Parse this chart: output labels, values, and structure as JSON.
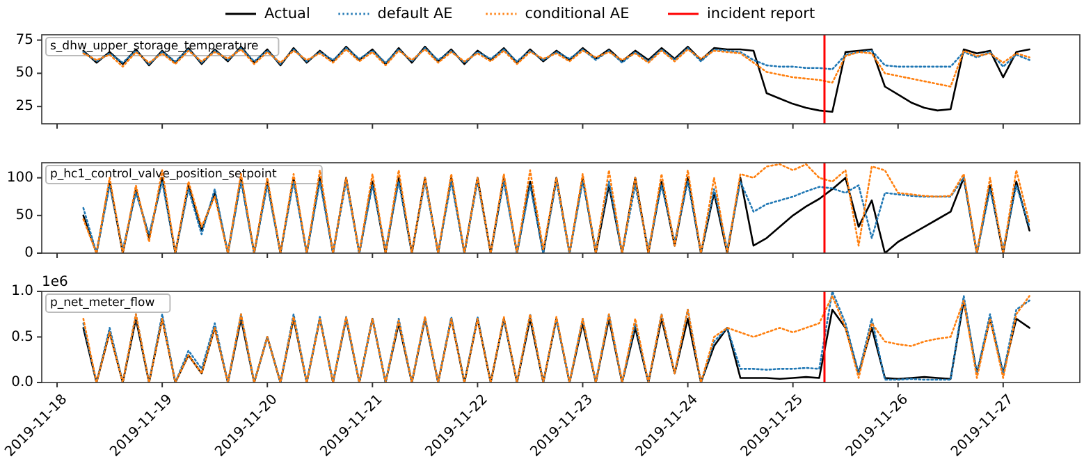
{
  "chart_data": [
    {
      "type": "line",
      "title": "s_dhw_upper_storage_temperature",
      "legend": "top",
      "tick_labels": "y",
      "x": [
        "2019-11-18T06:00",
        "2019-11-18T09:00",
        "2019-11-18T12:00",
        "2019-11-18T15:00",
        "2019-11-18T18:00",
        "2019-11-18T21:00",
        "2019-11-19T00:00",
        "2019-11-19T03:00",
        "2019-11-19T06:00",
        "2019-11-19T09:00",
        "2019-11-19T12:00",
        "2019-11-19T15:00",
        "2019-11-19T18:00",
        "2019-11-19T21:00",
        "2019-11-20T00:00",
        "2019-11-20T03:00",
        "2019-11-20T06:00",
        "2019-11-20T09:00",
        "2019-11-20T12:00",
        "2019-11-20T15:00",
        "2019-11-20T18:00",
        "2019-11-20T21:00",
        "2019-11-21T00:00",
        "2019-11-21T03:00",
        "2019-11-21T06:00",
        "2019-11-21T09:00",
        "2019-11-21T12:00",
        "2019-11-21T15:00",
        "2019-11-21T18:00",
        "2019-11-21T21:00",
        "2019-11-22T00:00",
        "2019-11-22T03:00",
        "2019-11-22T06:00",
        "2019-11-22T09:00",
        "2019-11-22T12:00",
        "2019-11-22T15:00",
        "2019-11-22T18:00",
        "2019-11-22T21:00",
        "2019-11-23T00:00",
        "2019-11-23T03:00",
        "2019-11-23T06:00",
        "2019-11-23T09:00",
        "2019-11-23T12:00",
        "2019-11-23T15:00",
        "2019-11-23T18:00",
        "2019-11-23T21:00",
        "2019-11-24T00:00",
        "2019-11-24T03:00",
        "2019-11-24T06:00",
        "2019-11-24T09:00",
        "2019-11-24T12:00",
        "2019-11-24T15:00",
        "2019-11-24T18:00",
        "2019-11-24T21:00",
        "2019-11-25T00:00",
        "2019-11-25T03:00",
        "2019-11-25T06:00",
        "2019-11-25T09:00",
        "2019-11-25T12:00",
        "2019-11-25T15:00",
        "2019-11-25T18:00",
        "2019-11-25T21:00",
        "2019-11-26T00:00",
        "2019-11-26T03:00",
        "2019-11-26T06:00",
        "2019-11-26T09:00",
        "2019-11-26T12:00",
        "2019-11-26T15:00",
        "2019-11-26T18:00",
        "2019-11-26T21:00",
        "2019-11-27T00:00",
        "2019-11-27T03:00",
        "2019-11-27T06:00"
      ],
      "xlim": [
        "2019-11-17T20:30",
        "2019-11-27T17:30"
      ],
      "xticks": [
        "2019-11-18",
        "2019-11-19",
        "2019-11-20",
        "2019-11-21",
        "2019-11-22",
        "2019-11-23",
        "2019-11-24",
        "2019-11-25",
        "2019-11-26",
        "2019-11-27"
      ],
      "ylim": [
        12,
        79
      ],
      "yticks": [
        25,
        50,
        75
      ],
      "ref_lines": [
        {
          "axis": "x",
          "value": "2019-11-25T07:12",
          "label": "incident report",
          "color": "#ff0000"
        }
      ],
      "series": [
        {
          "name": "Actual",
          "color": "#000000",
          "line_style": "solid",
          "values": [
            67,
            58,
            66,
            57,
            68,
            56,
            67,
            58,
            69,
            57,
            68,
            59,
            70,
            58,
            68,
            56,
            69,
            58,
            67,
            59,
            70,
            60,
            68,
            57,
            69,
            58,
            70,
            59,
            68,
            57,
            67,
            60,
            69,
            58,
            68,
            59,
            67,
            60,
            69,
            61,
            68,
            59,
            67,
            60,
            69,
            61,
            70,
            60,
            69,
            68,
            68,
            67,
            35,
            31,
            27,
            24,
            22,
            21,
            66,
            67,
            68,
            40,
            34,
            28,
            24,
            22,
            23,
            68,
            65,
            67,
            47,
            66,
            68
          ]
        },
        {
          "name": "default AE",
          "color": "#1f77b4",
          "line_style": "dotted",
          "values": [
            66,
            59,
            65,
            58,
            67,
            57,
            66,
            59,
            68,
            58,
            67,
            60,
            69,
            59,
            67,
            57,
            68,
            59,
            66,
            60,
            69,
            61,
            67,
            58,
            68,
            59,
            69,
            60,
            67,
            58,
            66,
            61,
            68,
            59,
            67,
            60,
            66,
            61,
            68,
            60,
            67,
            58,
            66,
            59,
            68,
            60,
            69,
            59,
            68,
            67,
            66,
            60,
            56,
            55,
            55,
            54,
            54,
            53,
            64,
            66,
            67,
            56,
            55,
            55,
            55,
            55,
            55,
            66,
            62,
            66,
            55,
            64,
            60
          ]
        },
        {
          "name": "conditional AE",
          "color": "#ff7f0e",
          "line_style": "dotted",
          "values": [
            65,
            60,
            64,
            55,
            66,
            58,
            65,
            57,
            67,
            59,
            66,
            61,
            68,
            57,
            66,
            58,
            67,
            60,
            65,
            58,
            68,
            59,
            66,
            56,
            67,
            60,
            68,
            58,
            66,
            59,
            65,
            59,
            67,
            57,
            66,
            61,
            65,
            59,
            67,
            62,
            66,
            60,
            65,
            58,
            67,
            59,
            68,
            61,
            67,
            66,
            65,
            58,
            51,
            49,
            47,
            46,
            45,
            43,
            63,
            66,
            65,
            50,
            48,
            46,
            44,
            42,
            40,
            67,
            63,
            65,
            58,
            65,
            62
          ]
        }
      ]
    },
    {
      "type": "line",
      "title": "p_hc1_control_valve_position_setpoint",
      "tick_labels": "y",
      "x": [
        "2019-11-18T06:00",
        "2019-11-18T09:00",
        "2019-11-18T12:00",
        "2019-11-18T15:00",
        "2019-11-18T18:00",
        "2019-11-18T21:00",
        "2019-11-19T00:00",
        "2019-11-19T03:00",
        "2019-11-19T06:00",
        "2019-11-19T09:00",
        "2019-11-19T12:00",
        "2019-11-19T15:00",
        "2019-11-19T18:00",
        "2019-11-19T21:00",
        "2019-11-20T00:00",
        "2019-11-20T03:00",
        "2019-11-20T06:00",
        "2019-11-20T09:00",
        "2019-11-20T12:00",
        "2019-11-20T15:00",
        "2019-11-20T18:00",
        "2019-11-20T21:00",
        "2019-11-21T00:00",
        "2019-11-21T03:00",
        "2019-11-21T06:00",
        "2019-11-21T09:00",
        "2019-11-21T12:00",
        "2019-11-21T15:00",
        "2019-11-21T18:00",
        "2019-11-21T21:00",
        "2019-11-22T00:00",
        "2019-11-22T03:00",
        "2019-11-22T06:00",
        "2019-11-22T09:00",
        "2019-11-22T12:00",
        "2019-11-22T15:00",
        "2019-11-22T18:00",
        "2019-11-22T21:00",
        "2019-11-23T00:00",
        "2019-11-23T03:00",
        "2019-11-23T06:00",
        "2019-11-23T09:00",
        "2019-11-23T12:00",
        "2019-11-23T15:00",
        "2019-11-23T18:00",
        "2019-11-23T21:00",
        "2019-11-24T00:00",
        "2019-11-24T03:00",
        "2019-11-24T06:00",
        "2019-11-24T09:00",
        "2019-11-24T12:00",
        "2019-11-24T15:00",
        "2019-11-24T18:00",
        "2019-11-24T21:00",
        "2019-11-25T00:00",
        "2019-11-25T03:00",
        "2019-11-25T06:00",
        "2019-11-25T09:00",
        "2019-11-25T12:00",
        "2019-11-25T15:00",
        "2019-11-25T18:00",
        "2019-11-25T21:00",
        "2019-11-26T00:00",
        "2019-11-26T03:00",
        "2019-11-26T06:00",
        "2019-11-26T09:00",
        "2019-11-26T12:00",
        "2019-11-26T15:00",
        "2019-11-26T18:00",
        "2019-11-26T21:00",
        "2019-11-27T00:00",
        "2019-11-27T03:00",
        "2019-11-27T06:00"
      ],
      "xlim": [
        "2019-11-17T20:30",
        "2019-11-27T17:30"
      ],
      "xticks": [
        "2019-11-18",
        "2019-11-19",
        "2019-11-20",
        "2019-11-21",
        "2019-11-22",
        "2019-11-23",
        "2019-11-24",
        "2019-11-25",
        "2019-11-26",
        "2019-11-27"
      ],
      "ylim": [
        0,
        120
      ],
      "yticks": [
        0,
        50,
        100
      ],
      "ref_lines": [
        {
          "axis": "x",
          "value": "2019-11-25T07:12",
          "color": "#ff0000"
        }
      ],
      "series": [
        {
          "name": "Actual",
          "color": "#000000",
          "line_style": "solid",
          "values": [
            50,
            0,
            95,
            0,
            85,
            20,
            100,
            0,
            90,
            30,
            80,
            0,
            100,
            0,
            95,
            0,
            100,
            0,
            100,
            0,
            100,
            0,
            95,
            0,
            100,
            0,
            100,
            0,
            100,
            0,
            100,
            0,
            100,
            0,
            95,
            0,
            100,
            0,
            100,
            0,
            90,
            0,
            100,
            0,
            95,
            10,
            100,
            0,
            80,
            0,
            100,
            10,
            20,
            35,
            50,
            62,
            72,
            85,
            100,
            35,
            70,
            0,
            15,
            25,
            35,
            45,
            55,
            100,
            0,
            90,
            0,
            95,
            30
          ]
        },
        {
          "name": "default AE",
          "color": "#1f77b4",
          "line_style": "dotted",
          "values": [
            60,
            0,
            90,
            5,
            80,
            25,
            95,
            0,
            85,
            25,
            85,
            0,
            95,
            0,
            90,
            0,
            95,
            0,
            95,
            0,
            95,
            0,
            90,
            5,
            95,
            0,
            95,
            0,
            95,
            0,
            95,
            0,
            95,
            0,
            90,
            0,
            95,
            0,
            95,
            5,
            95,
            0,
            90,
            5,
            90,
            15,
            95,
            0,
            85,
            5,
            95,
            55,
            65,
            70,
            75,
            82,
            88,
            86,
            80,
            90,
            20,
            80,
            78,
            76,
            75,
            75,
            75,
            100,
            0,
            85,
            5,
            90,
            35
          ]
        },
        {
          "name": "conditional AE",
          "color": "#ff7f0e",
          "line_style": "dotted",
          "values": [
            45,
            0,
            100,
            0,
            90,
            15,
            110,
            0,
            95,
            35,
            75,
            0,
            105,
            0,
            100,
            0,
            105,
            0,
            110,
            0,
            100,
            0,
            105,
            0,
            110,
            0,
            100,
            0,
            105,
            0,
            100,
            0,
            105,
            0,
            110,
            5,
            100,
            0,
            105,
            0,
            110,
            0,
            100,
            0,
            105,
            10,
            110,
            0,
            100,
            0,
            105,
            100,
            115,
            118,
            110,
            118,
            100,
            95,
            110,
            10,
            115,
            110,
            80,
            78,
            76,
            75,
            76,
            105,
            0,
            100,
            0,
            110,
            40
          ]
        }
      ]
    },
    {
      "type": "line",
      "title": "p_net_meter_flow",
      "annotations": [
        "1e6"
      ],
      "x": [
        "2019-11-18T06:00",
        "2019-11-18T09:00",
        "2019-11-18T12:00",
        "2019-11-18T15:00",
        "2019-11-18T18:00",
        "2019-11-18T21:00",
        "2019-11-19T00:00",
        "2019-11-19T03:00",
        "2019-11-19T06:00",
        "2019-11-19T09:00",
        "2019-11-19T12:00",
        "2019-11-19T15:00",
        "2019-11-19T18:00",
        "2019-11-19T21:00",
        "2019-11-20T00:00",
        "2019-11-20T03:00",
        "2019-11-20T06:00",
        "2019-11-20T09:00",
        "2019-11-20T12:00",
        "2019-11-20T15:00",
        "2019-11-20T18:00",
        "2019-11-20T21:00",
        "2019-11-21T00:00",
        "2019-11-21T03:00",
        "2019-11-21T06:00",
        "2019-11-21T09:00",
        "2019-11-21T12:00",
        "2019-11-21T15:00",
        "2019-11-21T18:00",
        "2019-11-21T21:00",
        "2019-11-22T00:00",
        "2019-11-22T03:00",
        "2019-11-22T06:00",
        "2019-11-22T09:00",
        "2019-11-22T12:00",
        "2019-11-22T15:00",
        "2019-11-22T18:00",
        "2019-11-22T21:00",
        "2019-11-23T00:00",
        "2019-11-23T03:00",
        "2019-11-23T06:00",
        "2019-11-23T09:00",
        "2019-11-23T12:00",
        "2019-11-23T15:00",
        "2019-11-23T18:00",
        "2019-11-23T21:00",
        "2019-11-24T00:00",
        "2019-11-24T03:00",
        "2019-11-24T06:00",
        "2019-11-24T09:00",
        "2019-11-24T12:00",
        "2019-11-24T15:00",
        "2019-11-24T18:00",
        "2019-11-24T21:00",
        "2019-11-25T00:00",
        "2019-11-25T03:00",
        "2019-11-25T06:00",
        "2019-11-25T09:00",
        "2019-11-25T12:00",
        "2019-11-25T15:00",
        "2019-11-25T18:00",
        "2019-11-25T21:00",
        "2019-11-26T00:00",
        "2019-11-26T03:00",
        "2019-11-26T06:00",
        "2019-11-26T09:00",
        "2019-11-26T12:00",
        "2019-11-26T15:00",
        "2019-11-26T18:00",
        "2019-11-26T21:00",
        "2019-11-27T00:00",
        "2019-11-27T03:00",
        "2019-11-27T06:00"
      ],
      "xlim": [
        "2019-11-17T20:30",
        "2019-11-27T17:30"
      ],
      "xticks": [
        "2019-11-18",
        "2019-11-19",
        "2019-11-20",
        "2019-11-21",
        "2019-11-22",
        "2019-11-23",
        "2019-11-24",
        "2019-11-25",
        "2019-11-26",
        "2019-11-27"
      ],
      "ylim": [
        0,
        1
      ],
      "yticks": [
        {
          "value": 0,
          "label": "0.0"
        },
        {
          "value": 0.5,
          "label": "0.5"
        },
        {
          "value": 1,
          "label": "1.0"
        }
      ],
      "ref_lines": [
        {
          "axis": "x",
          "value": "2019-11-25T07:12",
          "color": "#ff0000"
        }
      ],
      "series": [
        {
          "name": "Actual",
          "color": "#000000",
          "line_style": "solid",
          "values": [
            0.6,
            0,
            0.55,
            0,
            0.7,
            0,
            0.7,
            0,
            0.3,
            0.1,
            0.6,
            0,
            0.7,
            0,
            0.5,
            0,
            0.7,
            0,
            0.7,
            0,
            0.7,
            0,
            0.7,
            0,
            0.65,
            0,
            0.7,
            0,
            0.7,
            0,
            0.7,
            0,
            0.7,
            0,
            0.7,
            0,
            0.7,
            0,
            0.65,
            0,
            0.7,
            0,
            0.6,
            0,
            0.7,
            0.1,
            0.7,
            0,
            0.4,
            0.6,
            0.05,
            0.05,
            0.05,
            0.04,
            0.05,
            0.06,
            0.05,
            0.8,
            0.6,
            0.1,
            0.6,
            0.05,
            0.04,
            0.05,
            0.06,
            0.05,
            0.04,
            0.9,
            0.1,
            0.7,
            0.1,
            0.7,
            0.6
          ]
        },
        {
          "name": "default AE",
          "color": "#1f77b4",
          "line_style": "dotted",
          "values": [
            0.65,
            0,
            0.6,
            0,
            0.75,
            0,
            0.75,
            0,
            0.35,
            0.15,
            0.65,
            0,
            0.75,
            0,
            0.5,
            0,
            0.75,
            0,
            0.72,
            0,
            0.72,
            0,
            0.7,
            0,
            0.7,
            0,
            0.72,
            0,
            0.72,
            0,
            0.72,
            0,
            0.7,
            0,
            0.75,
            0,
            0.7,
            0,
            0.7,
            0,
            0.75,
            0,
            0.65,
            0,
            0.75,
            0.1,
            0.8,
            0,
            0.45,
            0.6,
            0.15,
            0.15,
            0.14,
            0.15,
            0.15,
            0.16,
            0.15,
            1.0,
            0.65,
            0.1,
            0.7,
            0.03,
            0.03,
            0.04,
            0.03,
            0.03,
            0.03,
            0.95,
            0.1,
            0.75,
            0.1,
            0.8,
            0.9
          ]
        },
        {
          "name": "conditional AE",
          "color": "#ff7f0e",
          "line_style": "dotted",
          "values": [
            0.7,
            0,
            0.55,
            0,
            0.75,
            0,
            0.7,
            0,
            0.3,
            0.1,
            0.6,
            0,
            0.75,
            0,
            0.5,
            0,
            0.72,
            0,
            0.7,
            0,
            0.72,
            0,
            0.7,
            0,
            0.68,
            0,
            0.72,
            0,
            0.7,
            0,
            0.7,
            0,
            0.72,
            0,
            0.75,
            0,
            0.72,
            0,
            0.7,
            0,
            0.75,
            0,
            0.7,
            0,
            0.75,
            0.1,
            0.8,
            0,
            0.5,
            0.6,
            0.55,
            0.5,
            0.55,
            0.6,
            0.55,
            0.6,
            0.65,
            0.95,
            0.6,
            0.05,
            0.65,
            0.45,
            0.42,
            0.4,
            0.45,
            0.48,
            0.5,
            0.9,
            0.05,
            0.7,
            0.05,
            0.75,
            0.95
          ]
        }
      ]
    }
  ]
}
